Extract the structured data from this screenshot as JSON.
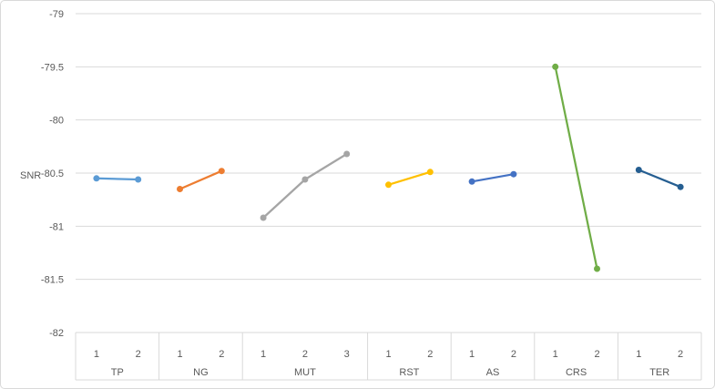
{
  "chart_data": {
    "type": "line",
    "title": "",
    "xlabel": "",
    "ylabel": "SNR",
    "ylim": [
      -82,
      -79
    ],
    "ytick_step": 0.5,
    "yticks": [
      -79,
      -79.5,
      -80,
      -80.5,
      -81,
      -81.5,
      -82
    ],
    "ytick_labels": [
      "-79",
      "-79.5",
      "-80",
      "-80.5",
      "-81",
      "-81.5",
      "-82"
    ],
    "grid": true,
    "legend_position": "none",
    "axis_type": "multi-level-category",
    "groups": [
      {
        "factor": "TP",
        "levels": [
          "1",
          "2"
        ],
        "values": [
          -80.55,
          -80.56
        ],
        "color": "#5B9BD5"
      },
      {
        "factor": "NG",
        "levels": [
          "1",
          "2"
        ],
        "values": [
          -80.65,
          -80.48
        ],
        "color": "#ED7D31"
      },
      {
        "factor": "MUT",
        "levels": [
          "1",
          "2",
          "3"
        ],
        "values": [
          -80.92,
          -80.56,
          -80.32
        ],
        "color": "#A5A5A5"
      },
      {
        "factor": "RST",
        "levels": [
          "1",
          "2"
        ],
        "values": [
          -80.61,
          -80.49
        ],
        "color": "#FFC000"
      },
      {
        "factor": "AS",
        "levels": [
          "1",
          "2"
        ],
        "values": [
          -80.58,
          -80.51
        ],
        "color": "#4472C4"
      },
      {
        "factor": "CRS",
        "levels": [
          "1",
          "2"
        ],
        "values": [
          -79.5,
          -81.4
        ],
        "color": "#70AD47"
      },
      {
        "factor": "TER",
        "levels": [
          "1",
          "2"
        ],
        "values": [
          -80.47,
          -80.63
        ],
        "color": "#255E91"
      }
    ]
  },
  "colors": {
    "grid": "#D9D9D9",
    "axis_text": "#595959",
    "frame_border": "#D9D9D9",
    "background": "#FFFFFF"
  }
}
